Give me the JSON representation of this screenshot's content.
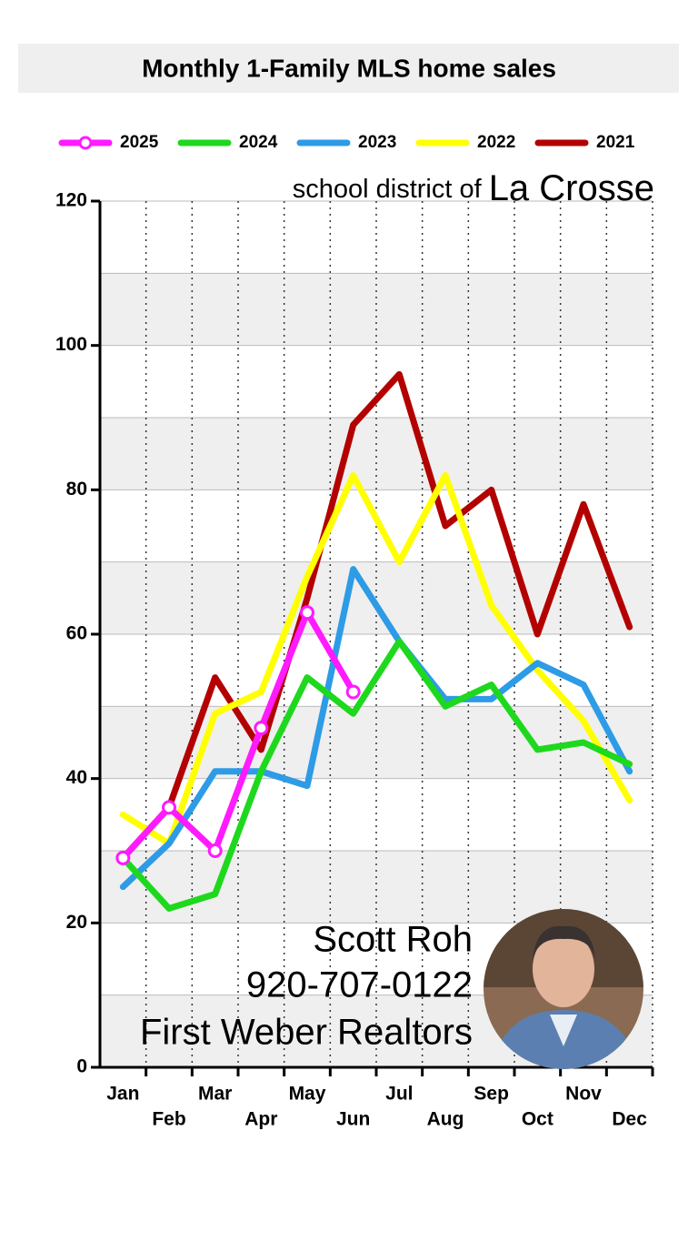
{
  "chart_data": {
    "type": "line",
    "title": "Monthly 1-Family MLS home sales",
    "annotations": {
      "subtitle_prefix": "school district of",
      "subtitle_place": "La Crosse",
      "contact": [
        "Scott Roh",
        "920-707-0122",
        "First Weber Realtors"
      ]
    },
    "categories": [
      "Jan",
      "Feb",
      "Mar",
      "Apr",
      "May",
      "Jun",
      "Jul",
      "Aug",
      "Sep",
      "Oct",
      "Nov",
      "Dec"
    ],
    "series": [
      {
        "name": "2025",
        "color": "#ff1aff",
        "markers": true,
        "values": [
          29,
          36,
          30,
          47,
          63,
          52,
          null,
          null,
          null,
          null,
          null,
          null
        ]
      },
      {
        "name": "2024",
        "color": "#1ed81e",
        "values": [
          29,
          22,
          24,
          41,
          54,
          49,
          59,
          50,
          53,
          44,
          45,
          42
        ]
      },
      {
        "name": "2023",
        "color": "#2e9be6",
        "values": [
          25,
          31,
          41,
          41,
          39,
          69,
          59,
          51,
          51,
          56,
          53,
          41
        ]
      },
      {
        "name": "2022",
        "color": "#ffff00",
        "values": [
          35,
          31,
          49,
          52,
          68,
          82,
          70,
          82,
          64,
          55,
          48,
          37
        ]
      },
      {
        "name": "2021",
        "color": "#b30000",
        "values": [
          29,
          36,
          54,
          44,
          65,
          89,
          96,
          75,
          80,
          60,
          78,
          61
        ]
      }
    ],
    "ylim": [
      0,
      120
    ],
    "yticks": [
      0,
      20,
      40,
      60,
      80,
      100,
      120
    ],
    "grid": true
  }
}
